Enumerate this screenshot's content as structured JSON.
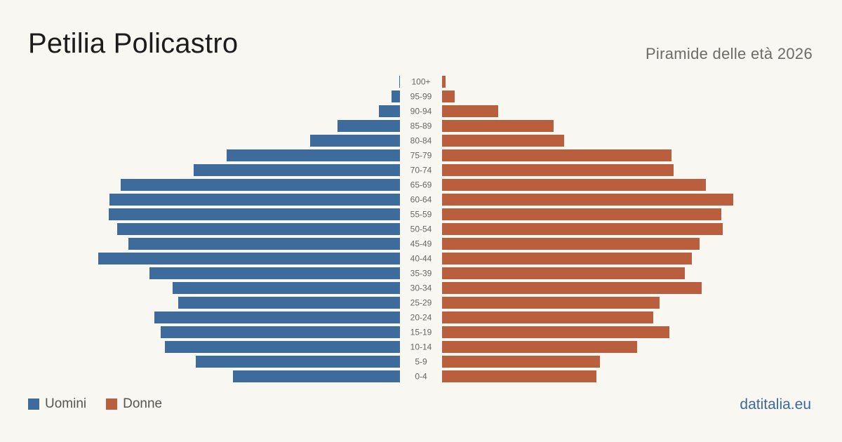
{
  "header": {
    "title": "Petilia Policastro",
    "subtitle": "Piramide delle età 2026"
  },
  "legend": {
    "men_label": "Uomini",
    "women_label": "Donne"
  },
  "brand": "datitalia.eu",
  "colors": {
    "men": "#3d6b9c",
    "women": "#b95f3e",
    "background": "#f9f7f2",
    "age_label": "#666666"
  },
  "chart_data": {
    "type": "bar",
    "orientation": "horizontal",
    "categories": [
      "100+",
      "95-99",
      "90-94",
      "85-89",
      "80-84",
      "75-79",
      "70-74",
      "65-69",
      "60-64",
      "55-59",
      "50-54",
      "45-49",
      "40-44",
      "35-39",
      "30-34",
      "25-29",
      "20-24",
      "15-19",
      "10-14",
      "5-9",
      "0-4"
    ],
    "series": [
      {
        "name": "Uomini",
        "values": [
          1,
          12,
          30,
          89,
          128,
          247,
          294,
          398,
          414,
          415,
          403,
          387,
          430,
          357,
          324,
          316,
          350,
          341,
          335,
          291,
          238
        ]
      },
      {
        "name": "Donne",
        "values": [
          5,
          18,
          80,
          159,
          174,
          327,
          330,
          376,
          415,
          398,
          400,
          367,
          356,
          346,
          370,
          310,
          301,
          324,
          278,
          225,
          220
        ]
      }
    ],
    "xlim": [
      0,
      430
    ],
    "grid": false,
    "legend_position": "bottom-left"
  }
}
